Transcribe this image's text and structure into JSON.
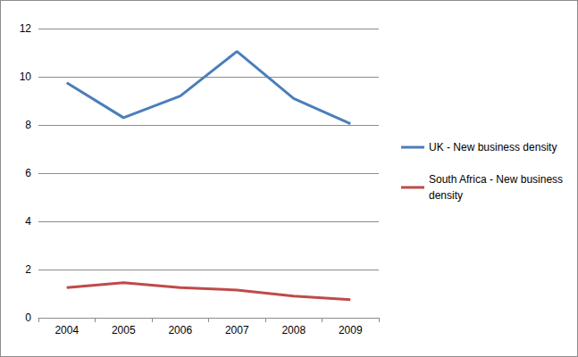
{
  "chart_data": {
    "type": "line",
    "categories": [
      "2004",
      "2005",
      "2006",
      "2007",
      "2008",
      "2009"
    ],
    "series": [
      {
        "name": "UK - New business density",
        "color": "#4a7ebb",
        "marker": "none",
        "values": [
          9.75,
          8.3,
          9.2,
          11.05,
          9.1,
          8.05
        ]
      },
      {
        "name": "South Africa - New business density",
        "color": "#be4b48",
        "marker": "none",
        "values": [
          1.25,
          1.45,
          1.25,
          1.15,
          0.9,
          0.75
        ]
      }
    ],
    "ylim": [
      0,
      12
    ],
    "yticks": [
      0,
      2,
      4,
      6,
      8,
      10,
      12
    ],
    "grid": true,
    "legend": "right"
  }
}
